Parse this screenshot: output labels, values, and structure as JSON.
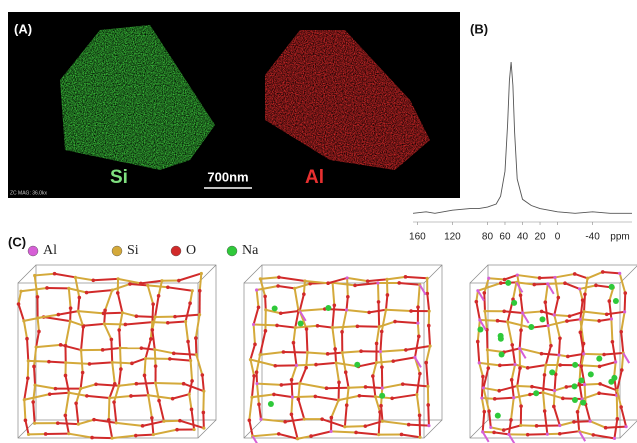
{
  "panel_a": {
    "label": "(A)",
    "element_1": "Si",
    "element_2": "Al",
    "scale_bar": "700nm",
    "footer": "ZC MAG: 36.0kx"
  },
  "panel_b": {
    "label": "(B)"
  },
  "chart_data": {
    "type": "line",
    "xlabel": "ppm",
    "color": "#555555",
    "x": [
      165,
      150,
      140,
      120,
      100,
      90,
      80,
      70,
      65,
      60,
      57,
      55,
      53,
      51,
      49,
      46,
      40,
      30,
      20,
      10,
      0,
      -20,
      -40,
      -60,
      -85
    ],
    "values": [
      3,
      4,
      3,
      5,
      6,
      6,
      7,
      9,
      14,
      30,
      60,
      88,
      100,
      85,
      55,
      25,
      12,
      8,
      6,
      5,
      4,
      3,
      4,
      3,
      3
    ],
    "xlim": [
      165,
      -85
    ],
    "ylim": [
      0,
      100
    ],
    "xticks": [
      160,
      120,
      80,
      60,
      40,
      20,
      0,
      -40
    ]
  },
  "panel_c": {
    "label": "(C)",
    "legend": [
      {
        "label": "Al",
        "color": "#d65fd6"
      },
      {
        "label": "Si",
        "color": "#d4a93a"
      },
      {
        "label": "O",
        "color": "#d12a2a"
      },
      {
        "label": "Na",
        "color": "#2fc93a"
      }
    ]
  }
}
